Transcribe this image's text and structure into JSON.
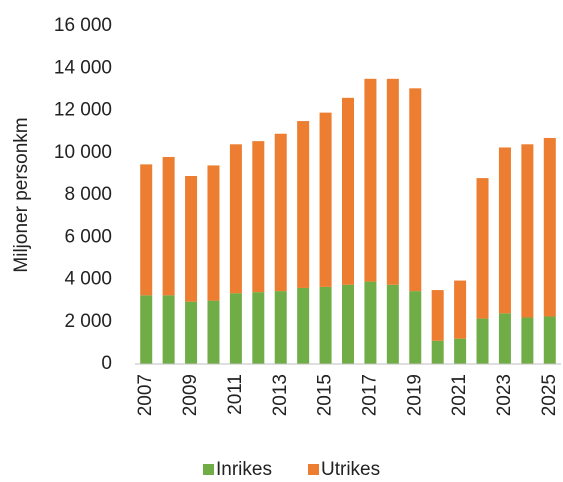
{
  "chart_data": {
    "type": "stacked_bar",
    "ylabel": "Miljoner personkm",
    "categories": [
      "2007",
      null,
      "2009",
      null,
      "2011",
      null,
      "2013",
      null,
      "2015",
      null,
      "2017",
      null,
      "2019",
      null,
      "2021",
      null,
      "2023",
      null,
      "2025"
    ],
    "series": [
      {
        "name": "Inrikes",
        "color": "#70ad47",
        "values": [
          3250,
          3250,
          2950,
          3000,
          3350,
          3400,
          3450,
          3600,
          3650,
          3750,
          3900,
          3750,
          3450,
          1100,
          1200,
          2150,
          2400,
          2200,
          2250
        ]
      },
      {
        "name": "Utrikes",
        "color": "#ed7d31",
        "values": [
          6200,
          6550,
          5950,
          6400,
          7050,
          7150,
          7450,
          7900,
          8250,
          8850,
          9600,
          9750,
          9600,
          2400,
          2750,
          6650,
          7850,
          8200,
          8450
        ]
      }
    ],
    "ylim": [
      0,
      16000
    ],
    "yticks": [
      0,
      {
        "value": 2000,
        "label": "2 000"
      },
      {
        "value": 4000,
        "label": "4 000"
      },
      {
        "value": 6000,
        "label": "6 000"
      },
      {
        "value": 8000,
        "label": "8 000"
      },
      {
        "value": 10000,
        "label": "10 000"
      },
      {
        "value": 12000,
        "label": "12 000"
      },
      {
        "value": 14000,
        "label": "14 000"
      },
      {
        "value": 16000,
        "label": "16 000"
      }
    ],
    "grid": false,
    "legend": "bottom"
  }
}
